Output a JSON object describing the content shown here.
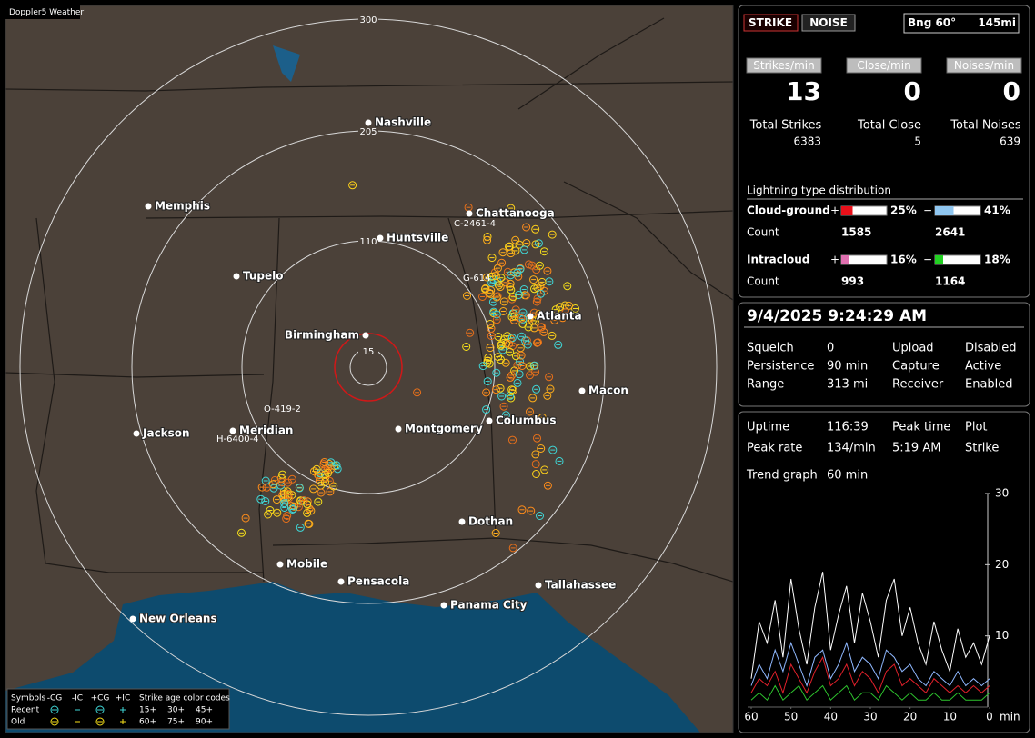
{
  "app": {
    "title": "Doppler5 Weather"
  },
  "map": {
    "rings": [
      "300",
      "205",
      "110",
      "15"
    ],
    "cities": [
      "Nashville",
      "Memphis",
      "Chattanooga",
      "Huntsville",
      "Tupelo",
      "Atlanta",
      "Birmingham",
      "Macon",
      "Jackson",
      "Meridian",
      "Montgomery",
      "Columbus",
      "Dothan",
      "Mobile",
      "Pensacola",
      "Tallahassee",
      "Panama City",
      "New Orleans"
    ],
    "stations": [
      "C-2461-4",
      "G-614",
      "O-419-2",
      "H-6400-4"
    ],
    "legend": {
      "title": "Symbols",
      "columns": [
        "-CG",
        "-IC",
        "+CG",
        "+IC"
      ],
      "rows": [
        "Recent",
        "Old"
      ],
      "age_title": "Strike age color codes",
      "ages": [
        [
          "15+",
          "30+",
          "45+"
        ],
        [
          "60+",
          "75+",
          "90+"
        ]
      ]
    }
  },
  "header": {
    "strike": "STRIKE",
    "noise": "NOISE",
    "bearing": "Bng 60°",
    "distance": "145mi"
  },
  "rates": [
    {
      "label": "Strikes/min",
      "value": 13,
      "total_label": "Total Strikes",
      "total": 6383
    },
    {
      "label": "Close/min",
      "value": 0,
      "total_label": "Total Close",
      "total": 5
    },
    {
      "label": "Noises/min",
      "value": 0,
      "total_label": "Total Noises",
      "total": 639
    }
  ],
  "distribution": {
    "title": "Lightning type distribution",
    "count_label": "Count",
    "rows": [
      {
        "name": "Cloud-ground",
        "pos_sign": "+",
        "pos_pct": 25,
        "pos_pct_label": "25%",
        "neg_sign": "−",
        "neg_pct": 41,
        "neg_pct_label": "41%",
        "pos_count": 1585,
        "neg_count": 2641
      },
      {
        "name": "Intracloud",
        "pos_sign": "+",
        "pos_pct": 16,
        "pos_pct_label": "16%",
        "neg_sign": "−",
        "neg_pct": 18,
        "neg_pct_label": "18%",
        "pos_count": 993,
        "neg_count": 1164
      }
    ]
  },
  "status": {
    "datetime": "9/4/2025 9:24:29 AM",
    "rows": [
      [
        "Squelch",
        "0",
        "Upload",
        "Disabled"
      ],
      [
        "Persistence",
        "90 min",
        "Capture",
        "Active"
      ],
      [
        "Range",
        "313 mi",
        "Receiver",
        "Enabled"
      ]
    ]
  },
  "stats": {
    "rows": [
      [
        "Uptime",
        "116:39",
        "Peak time",
        "Plot"
      ],
      [
        "Peak rate",
        "134/min",
        "5:19 AM",
        "Strike"
      ]
    ],
    "trend_label": "Trend graph",
    "trend_value": "60 min"
  },
  "trend": {
    "type": "line",
    "x_label": "min",
    "x": [
      60,
      58,
      56,
      54,
      52,
      50,
      48,
      46,
      44,
      42,
      40,
      38,
      36,
      34,
      32,
      30,
      28,
      26,
      24,
      22,
      20,
      18,
      16,
      14,
      12,
      10,
      8,
      6,
      4,
      2,
      0
    ],
    "xlim": [
      60,
      0
    ],
    "ylim": [
      0,
      30
    ],
    "xticks": [
      60,
      50,
      40,
      30,
      20,
      10,
      0
    ],
    "yticks": [
      10,
      20,
      30
    ],
    "series": [
      {
        "color": "#ffffff",
        "values": [
          4,
          12,
          9,
          15,
          7,
          18,
          11,
          6,
          14,
          19,
          8,
          13,
          17,
          9,
          16,
          12,
          7,
          15,
          18,
          10,
          14,
          9,
          6,
          12,
          8,
          5,
          11,
          7,
          9,
          6,
          10
        ]
      },
      {
        "color": "#8fb8ff",
        "values": [
          3,
          6,
          4,
          8,
          5,
          9,
          6,
          3,
          7,
          8,
          4,
          6,
          9,
          5,
          7,
          6,
          4,
          8,
          7,
          5,
          6,
          4,
          3,
          5,
          4,
          3,
          5,
          3,
          4,
          3,
          4
        ]
      },
      {
        "color": "#e0202a",
        "values": [
          2,
          4,
          3,
          5,
          2,
          6,
          4,
          2,
          5,
          7,
          3,
          4,
          6,
          3,
          5,
          4,
          2,
          5,
          6,
          3,
          4,
          3,
          2,
          4,
          3,
          2,
          3,
          2,
          3,
          2,
          3
        ]
      },
      {
        "color": "#2ec42e",
        "values": [
          1,
          2,
          1,
          3,
          1,
          2,
          3,
          1,
          2,
          3,
          1,
          2,
          3,
          1,
          2,
          2,
          1,
          3,
          2,
          1,
          2,
          1,
          1,
          2,
          1,
          1,
          2,
          1,
          1,
          1,
          2
        ]
      }
    ]
  }
}
